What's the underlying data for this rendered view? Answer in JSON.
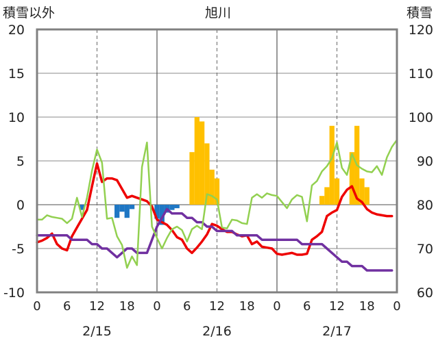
{
  "chart_data": {
    "type": "bar+line",
    "title": "旭川",
    "left_axis_label": "積雪以外",
    "right_axis_label": "積雪",
    "left_ylim": [
      -10,
      20
    ],
    "left_ticks": [
      "20",
      "15",
      "10",
      "5",
      "0",
      "-5",
      "-10"
    ],
    "right_ylim": [
      60,
      120
    ],
    "right_ticks": [
      "120",
      "110",
      "100",
      "90",
      "80",
      "70",
      "60"
    ],
    "x_hour_ticks": [
      {
        "pos": 0,
        "label": "0"
      },
      {
        "pos": 6,
        "label": "6"
      },
      {
        "pos": 12,
        "label": "12"
      },
      {
        "pos": 18,
        "label": "18"
      },
      {
        "pos": 24,
        "label": "0"
      },
      {
        "pos": 30,
        "label": "6"
      },
      {
        "pos": 36,
        "label": "12"
      },
      {
        "pos": 42,
        "label": "18"
      },
      {
        "pos": 48,
        "label": "0"
      },
      {
        "pos": 54,
        "label": "6"
      },
      {
        "pos": 60,
        "label": "12"
      },
      {
        "pos": 66,
        "label": "18"
      },
      {
        "pos": 72,
        "label": "0"
      }
    ],
    "dates": [
      {
        "pos": 12,
        "label": "2/15"
      },
      {
        "pos": 36,
        "label": "2/16"
      },
      {
        "pos": 60,
        "label": "2/17"
      }
    ],
    "xlim": [
      0,
      72
    ],
    "colors": {
      "orange": "#ffc000",
      "blue": "#1f77c4",
      "red": "#ee0000",
      "purple": "#7030a0",
      "green": "#92d050",
      "frame": "#808080"
    },
    "bars_orange": [
      [
        31,
        6
      ],
      [
        32,
        10
      ],
      [
        33,
        9.5
      ],
      [
        34,
        7
      ],
      [
        35,
        4
      ],
      [
        36,
        3
      ],
      [
        57,
        1
      ],
      [
        58,
        2
      ],
      [
        59,
        9
      ],
      [
        60,
        3
      ],
      [
        63,
        6
      ],
      [
        64,
        9
      ],
      [
        65,
        3
      ],
      [
        66,
        2
      ]
    ],
    "bars_blue": [
      [
        9,
        -0.6
      ],
      [
        16,
        -1.5
      ],
      [
        17,
        -0.8
      ],
      [
        18,
        -1.5
      ],
      [
        19,
        -0.5
      ],
      [
        24,
        -1.6
      ],
      [
        25,
        -2.3
      ],
      [
        26,
        -0.9
      ],
      [
        27,
        -0.6
      ],
      [
        28,
        -0.4
      ]
    ],
    "series": [
      {
        "color": "red",
        "axis": "left",
        "points": [
          [
            0,
            -4.3
          ],
          [
            1,
            -4.1
          ],
          [
            2,
            -3.8
          ],
          [
            3,
            -3.3
          ],
          [
            4,
            -4.5
          ],
          [
            5,
            -5
          ],
          [
            6,
            -5.2
          ],
          [
            7,
            -3.6
          ],
          [
            8,
            -2.6
          ],
          [
            9,
            -1.6
          ],
          [
            10,
            -0.6
          ],
          [
            11,
            2.1
          ],
          [
            12,
            4.7
          ],
          [
            13,
            2.6
          ],
          [
            14,
            3
          ],
          [
            15,
            3
          ],
          [
            16,
            2.8
          ],
          [
            17,
            1.8
          ],
          [
            18,
            0.8
          ],
          [
            19,
            1
          ],
          [
            20,
            0.8
          ],
          [
            21,
            0.6
          ],
          [
            22,
            0.4
          ],
          [
            23,
            -0.2
          ],
          [
            24,
            -1.7
          ],
          [
            25,
            -2
          ],
          [
            26,
            -2.3
          ],
          [
            27,
            -2.9
          ],
          [
            28,
            -3.7
          ],
          [
            29,
            -4
          ],
          [
            30,
            -5
          ],
          [
            31,
            -5.5
          ],
          [
            32,
            -4.9
          ],
          [
            33,
            -4.2
          ],
          [
            34,
            -3.4
          ],
          [
            35,
            -2.2
          ],
          [
            36,
            -2.4
          ],
          [
            37,
            -2.8
          ],
          [
            38,
            -3.1
          ],
          [
            39,
            -3.1
          ],
          [
            40,
            -3.4
          ],
          [
            41,
            -3.6
          ],
          [
            42,
            -3.5
          ],
          [
            43,
            -4.5
          ],
          [
            44,
            -4.2
          ],
          [
            45,
            -4.8
          ],
          [
            46,
            -4.9
          ],
          [
            47,
            -5
          ],
          [
            48,
            -5.6
          ],
          [
            49,
            -5.7
          ],
          [
            50,
            -5.6
          ],
          [
            51,
            -5.5
          ],
          [
            52,
            -5.7
          ],
          [
            53,
            -5.7
          ],
          [
            54,
            -5.6
          ],
          [
            55,
            -4
          ],
          [
            56,
            -3.6
          ],
          [
            57,
            -3.1
          ],
          [
            58,
            -1.3
          ],
          [
            59,
            -0.9
          ],
          [
            60,
            -0.6
          ],
          [
            61,
            0.9
          ],
          [
            62,
            1.7
          ],
          [
            63,
            2.1
          ],
          [
            64,
            0.7
          ],
          [
            65,
            0.3
          ],
          [
            66,
            -0.5
          ],
          [
            67,
            -0.9
          ],
          [
            68,
            -1.1
          ],
          [
            69,
            -1.2
          ],
          [
            70,
            -1.3
          ],
          [
            71,
            -1.3
          ]
        ]
      },
      {
        "color": "purple",
        "axis": "right",
        "points": [
          [
            0,
            73
          ],
          [
            3,
            73
          ],
          [
            6,
            73
          ],
          [
            7,
            72
          ],
          [
            8,
            72
          ],
          [
            9,
            72
          ],
          [
            10,
            72
          ],
          [
            11,
            71
          ],
          [
            12,
            71
          ],
          [
            13,
            70
          ],
          [
            14,
            70
          ],
          [
            15,
            69
          ],
          [
            16,
            68
          ],
          [
            17,
            69
          ],
          [
            18,
            70
          ],
          [
            19,
            70
          ],
          [
            20,
            69
          ],
          [
            21,
            69
          ],
          [
            22,
            69
          ],
          [
            23,
            72
          ],
          [
            24,
            75
          ],
          [
            25,
            77
          ],
          [
            26,
            79
          ],
          [
            27,
            78
          ],
          [
            28,
            78
          ],
          [
            29,
            78
          ],
          [
            30,
            77
          ],
          [
            31,
            77
          ],
          [
            32,
            76
          ],
          [
            33,
            76
          ],
          [
            34,
            75
          ],
          [
            35,
            75
          ],
          [
            36,
            74
          ],
          [
            37,
            74
          ],
          [
            38,
            74
          ],
          [
            39,
            74
          ],
          [
            40,
            73
          ],
          [
            41,
            73
          ],
          [
            42,
            73
          ],
          [
            43,
            73
          ],
          [
            44,
            73
          ],
          [
            45,
            72
          ],
          [
            48,
            72
          ],
          [
            52,
            72
          ],
          [
            53,
            71
          ],
          [
            56,
            71
          ],
          [
            57,
            71
          ],
          [
            58,
            70
          ],
          [
            59,
            69
          ],
          [
            60,
            68
          ],
          [
            61,
            67
          ],
          [
            62,
            67
          ],
          [
            63,
            66
          ],
          [
            64,
            66
          ],
          [
            65,
            66
          ],
          [
            66,
            65
          ],
          [
            67,
            65
          ],
          [
            68,
            65
          ],
          [
            70,
            65
          ],
          [
            71,
            65
          ]
        ]
      },
      {
        "color": "green",
        "axis": "left",
        "points": [
          [
            0,
            -1.7
          ],
          [
            1,
            -1.7
          ],
          [
            2,
            -1.2
          ],
          [
            3,
            -1.4
          ],
          [
            4,
            -1.5
          ],
          [
            5,
            -1.6
          ],
          [
            6,
            -2.1
          ],
          [
            7,
            -1.6
          ],
          [
            8,
            0.8
          ],
          [
            9,
            -1.4
          ],
          [
            10,
            0.8
          ],
          [
            11,
            3.9
          ],
          [
            12,
            6.3
          ],
          [
            13,
            4.8
          ],
          [
            14,
            -1.6
          ],
          [
            15,
            -1.5
          ],
          [
            16,
            -3.6
          ],
          [
            17,
            -4.6
          ],
          [
            18,
            -7.2
          ],
          [
            19,
            -5.9
          ],
          [
            20,
            -6.9
          ],
          [
            21,
            4.3
          ],
          [
            22,
            7.1
          ],
          [
            23,
            -2.5
          ],
          [
            24,
            -3.8
          ],
          [
            25,
            -5
          ],
          [
            26,
            -3.8
          ],
          [
            27,
            -2.8
          ],
          [
            28,
            -2.5
          ],
          [
            29,
            -2.9
          ],
          [
            30,
            -4.2
          ],
          [
            31,
            -2.8
          ],
          [
            32,
            -2.4
          ],
          [
            33,
            -2.8
          ],
          [
            34,
            1.2
          ],
          [
            35,
            1
          ],
          [
            36,
            0.6
          ],
          [
            37,
            -2.6
          ],
          [
            38,
            -2.7
          ],
          [
            39,
            -1.7
          ],
          [
            40,
            -1.8
          ],
          [
            41,
            -2.1
          ],
          [
            42,
            -2.2
          ],
          [
            43,
            0.8
          ],
          [
            44,
            1.2
          ],
          [
            45,
            0.8
          ],
          [
            46,
            1.3
          ],
          [
            47,
            1.1
          ],
          [
            48,
            1
          ],
          [
            49,
            0.3
          ],
          [
            50,
            -0.4
          ],
          [
            51,
            0.6
          ],
          [
            52,
            1.1
          ],
          [
            53,
            0.9
          ],
          [
            54,
            -1.9
          ],
          [
            55,
            2.2
          ],
          [
            56,
            2.7
          ],
          [
            57,
            3.8
          ],
          [
            58,
            4.4
          ],
          [
            59,
            5.3
          ],
          [
            60,
            7.1
          ],
          [
            61,
            4.2
          ],
          [
            62,
            3.4
          ],
          [
            63,
            5.8
          ],
          [
            64,
            4.5
          ],
          [
            65,
            4.1
          ],
          [
            66,
            3.8
          ],
          [
            67,
            3.7
          ],
          [
            68,
            4.4
          ],
          [
            69,
            3.4
          ],
          [
            70,
            5.4
          ],
          [
            71,
            6.6
          ],
          [
            72,
            7.4
          ]
        ]
      }
    ]
  }
}
